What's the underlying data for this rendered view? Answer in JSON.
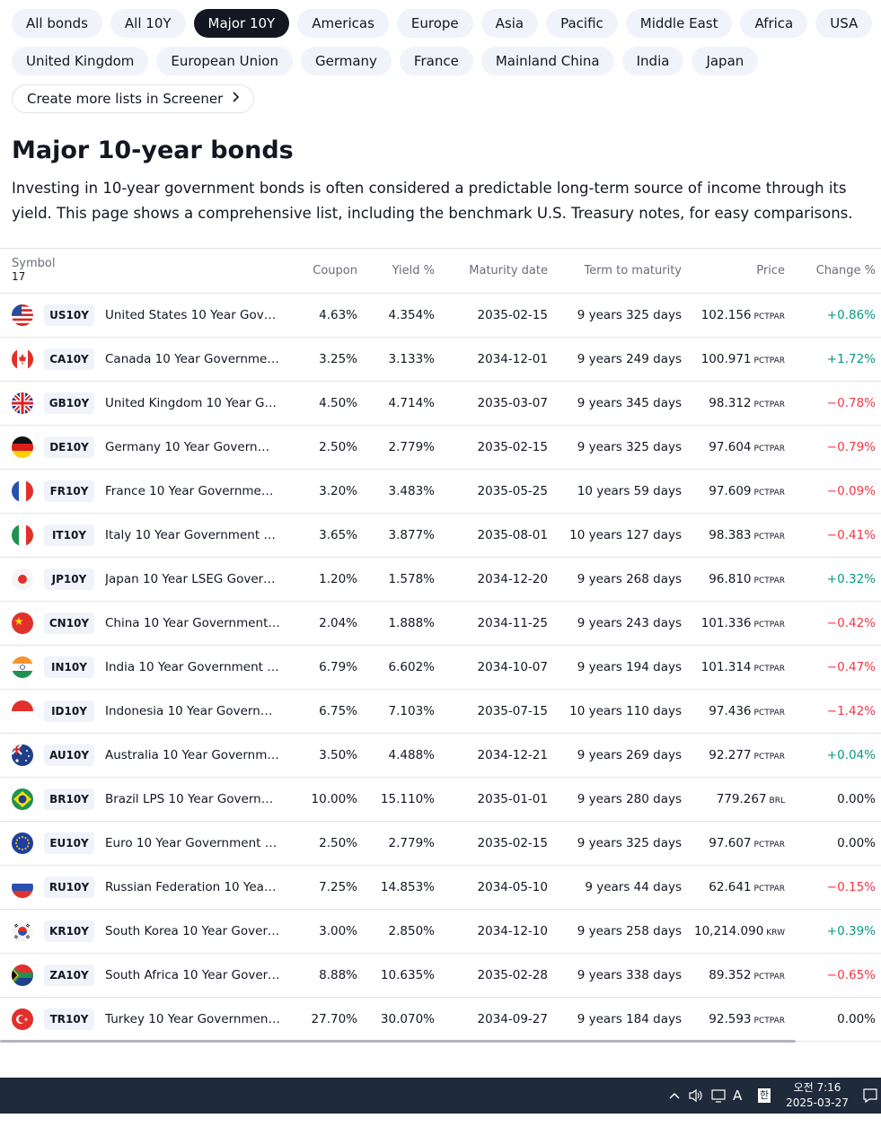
{
  "filters_row1": [
    "All bonds",
    "All 10Y",
    "Major 10Y",
    "Americas",
    "Europe",
    "Asia",
    "Pacific",
    "Middle East",
    "Africa",
    "USA"
  ],
  "filters_row2": [
    "United Kingdom",
    "European Union",
    "Germany",
    "France",
    "Mainland China",
    "India",
    "Japan"
  ],
  "active_filter": "Major 10Y",
  "screener_link": "Create more lists in Screener",
  "page_title": "Major 10-year bonds",
  "description": "Investing in 10-year government bonds is often considered a predictable long-term source of income through its yield. This page shows a comprehensive list, including the benchmark U.S. Treasury notes, for easy comparisons.",
  "table": {
    "headers": {
      "symbol": "Symbol",
      "count": "17",
      "coupon": "Coupon",
      "yield": "Yield %",
      "maturity": "Maturity date",
      "term": "Term to maturity",
      "price": "Price",
      "change": "Change %"
    },
    "rows": [
      {
        "flag": "us-flag-icon",
        "ticker": "US10Y",
        "name": "United States 10 Year Gover...",
        "coupon": "4.63%",
        "yield": "4.354%",
        "maturity": "2035-02-15",
        "term": "9 years 325 days",
        "price": "102.156",
        "unit": "PCTPAR",
        "change": "+0.86%",
        "dir": "pos"
      },
      {
        "flag": "ca-flag-icon",
        "ticker": "CA10Y",
        "name": "Canada 10 Year Government ...",
        "coupon": "3.25%",
        "yield": "3.133%",
        "maturity": "2034-12-01",
        "term": "9 years 249 days",
        "price": "100.971",
        "unit": "PCTPAR",
        "change": "+1.72%",
        "dir": "pos"
      },
      {
        "flag": "gb-flag-icon",
        "ticker": "GB10Y",
        "name": "United Kingdom 10 Year Gov...",
        "coupon": "4.50%",
        "yield": "4.714%",
        "maturity": "2035-03-07",
        "term": "9 years 345 days",
        "price": "98.312",
        "unit": "PCTPAR",
        "change": "−0.78%",
        "dir": "neg"
      },
      {
        "flag": "de-flag-icon",
        "ticker": "DE10Y",
        "name": "Germany 10 Year Governmen...",
        "coupon": "2.50%",
        "yield": "2.779%",
        "maturity": "2035-02-15",
        "term": "9 years 325 days",
        "price": "97.604",
        "unit": "PCTPAR",
        "change": "−0.79%",
        "dir": "neg"
      },
      {
        "flag": "fr-flag-icon",
        "ticker": "FR10Y",
        "name": "France 10 Year Government ...",
        "coupon": "3.20%",
        "yield": "3.483%",
        "maturity": "2035-05-25",
        "term": "10 years 59 days",
        "price": "97.609",
        "unit": "PCTPAR",
        "change": "−0.09%",
        "dir": "neg"
      },
      {
        "flag": "it-flag-icon",
        "ticker": "IT10Y",
        "name": "Italy 10 Year Government Bo...",
        "coupon": "3.65%",
        "yield": "3.877%",
        "maturity": "2035-08-01",
        "term": "10 years 127 days",
        "price": "98.383",
        "unit": "PCTPAR",
        "change": "−0.41%",
        "dir": "neg"
      },
      {
        "flag": "jp-flag-icon",
        "ticker": "JP10Y",
        "name": "Japan 10 Year LSEG Govern...",
        "coupon": "1.20%",
        "yield": "1.578%",
        "maturity": "2034-12-20",
        "term": "9 years 268 days",
        "price": "96.810",
        "unit": "PCTPAR",
        "change": "+0.32%",
        "dir": "pos"
      },
      {
        "flag": "cn-flag-icon",
        "ticker": "CN10Y",
        "name": "China 10 Year Government B...",
        "coupon": "2.04%",
        "yield": "1.888%",
        "maturity": "2034-11-25",
        "term": "9 years 243 days",
        "price": "101.336",
        "unit": "PCTPAR",
        "change": "−0.42%",
        "dir": "neg"
      },
      {
        "flag": "in-flag-icon",
        "ticker": "IN10Y",
        "name": "India 10 Year Government Bo...",
        "coupon": "6.79%",
        "yield": "6.602%",
        "maturity": "2034-10-07",
        "term": "9 years 194 days",
        "price": "101.314",
        "unit": "PCTPAR",
        "change": "−0.47%",
        "dir": "neg"
      },
      {
        "flag": "id-flag-icon",
        "ticker": "ID10Y",
        "name": "Indonesia 10 Year Governme...",
        "coupon": "6.75%",
        "yield": "7.103%",
        "maturity": "2035-07-15",
        "term": "10 years 110 days",
        "price": "97.436",
        "unit": "PCTPAR",
        "change": "−1.42%",
        "dir": "neg"
      },
      {
        "flag": "au-flag-icon",
        "ticker": "AU10Y",
        "name": "Australia 10 Year Governmen...",
        "coupon": "3.50%",
        "yield": "4.488%",
        "maturity": "2034-12-21",
        "term": "9 years 269 days",
        "price": "92.277",
        "unit": "PCTPAR",
        "change": "+0.04%",
        "dir": "pos"
      },
      {
        "flag": "br-flag-icon",
        "ticker": "BR10Y",
        "name": "Brazil LPS 10 Year Governme...",
        "coupon": "10.00%",
        "yield": "15.110%",
        "maturity": "2035-01-01",
        "term": "9 years 280 days",
        "price": "779.267",
        "unit": "BRL",
        "change": "0.00%",
        "dir": "zero"
      },
      {
        "flag": "eu-flag-icon",
        "ticker": "EU10Y",
        "name": "Euro 10 Year Government Bo...",
        "coupon": "2.50%",
        "yield": "2.779%",
        "maturity": "2035-02-15",
        "term": "9 years 325 days",
        "price": "97.607",
        "unit": "PCTPAR",
        "change": "0.00%",
        "dir": "zero"
      },
      {
        "flag": "ru-flag-icon",
        "ticker": "RU10Y",
        "name": "Russian Federation 10 Year G...",
        "coupon": "7.25%",
        "yield": "14.853%",
        "maturity": "2034-05-10",
        "term": "9 years 44 days",
        "price": "62.641",
        "unit": "PCTPAR",
        "change": "−0.15%",
        "dir": "neg"
      },
      {
        "flag": "kr-flag-icon",
        "ticker": "KR10Y",
        "name": "South Korea 10 Year Govern...",
        "coupon": "3.00%",
        "yield": "2.850%",
        "maturity": "2034-12-10",
        "term": "9 years 258 days",
        "price": "10,214.090",
        "unit": "KRW",
        "change": "+0.39%",
        "dir": "pos"
      },
      {
        "flag": "za-flag-icon",
        "ticker": "ZA10Y",
        "name": "South Africa 10 Year Govern...",
        "coupon": "8.88%",
        "yield": "10.635%",
        "maturity": "2035-02-28",
        "term": "9 years 338 days",
        "price": "89.352",
        "unit": "PCTPAR",
        "change": "−0.65%",
        "dir": "neg"
      },
      {
        "flag": "tr-flag-icon",
        "ticker": "TR10Y",
        "name": "Turkey 10 Year Government ...",
        "coupon": "27.70%",
        "yield": "30.070%",
        "maturity": "2034-09-27",
        "term": "9 years 184 days",
        "price": "92.593",
        "unit": "PCTPAR",
        "change": "0.00%",
        "dir": "zero"
      }
    ]
  },
  "colors": {
    "positive": "#089981",
    "negative": "#f23645",
    "active_chip": "#131722"
  },
  "taskbar": {
    "ime_mode": "A",
    "ime_lang": "한",
    "time": "오전 7:16",
    "date": "2025-03-27"
  }
}
